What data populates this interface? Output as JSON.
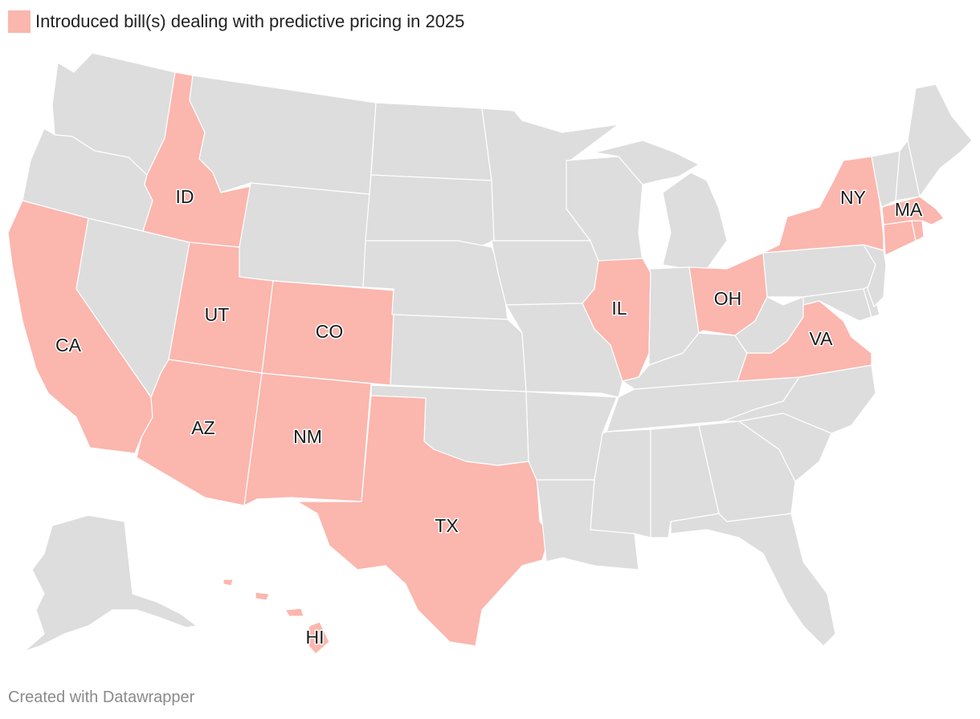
{
  "legend": {
    "label": "Introduced bill(s) dealing with predictive pricing in 2025",
    "color": "#fbb6ae"
  },
  "colors": {
    "highlight": "#fbb6ae",
    "base": "#dddddd",
    "border": "#ffffff"
  },
  "highlighted_states": [
    "CA",
    "ID",
    "UT",
    "AZ",
    "CO",
    "NM",
    "TX",
    "IL",
    "OH",
    "VA",
    "NY",
    "MA",
    "CT",
    "RI",
    "HI"
  ],
  "labels": {
    "ID": "ID",
    "CA": "CA",
    "UT": "UT",
    "CO": "CO",
    "AZ": "AZ",
    "NM": "NM",
    "TX": "TX",
    "IL": "IL",
    "OH": "OH",
    "VA": "VA",
    "NY": "NY",
    "MA": "MA",
    "HI": "HI"
  },
  "footer": {
    "credit": "Created with Datawrapper"
  }
}
